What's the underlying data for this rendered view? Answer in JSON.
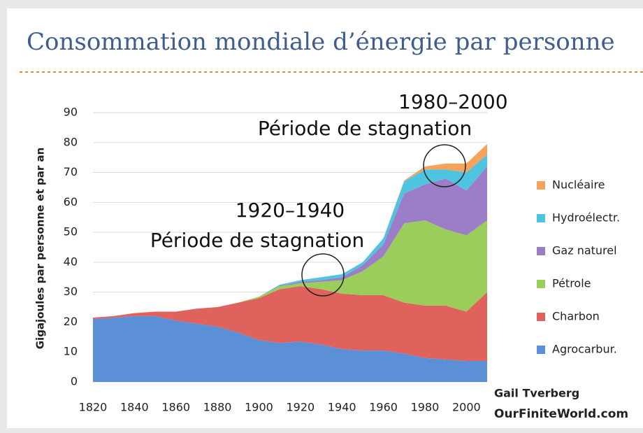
{
  "chart_data": {
    "type": "stacked_area",
    "title": "Consommation mondiale d’énergie par personne",
    "ylabel": "Gigajoules par personne et par an",
    "x": [
      1820,
      1830,
      1840,
      1850,
      1860,
      1870,
      1880,
      1890,
      1900,
      1910,
      1920,
      1930,
      1940,
      1950,
      1960,
      1970,
      1980,
      1990,
      2000,
      2010
    ],
    "xlim": [
      1820,
      2010
    ],
    "xticks": [
      1820,
      1840,
      1860,
      1880,
      1900,
      1920,
      1940,
      1960,
      1980,
      2000
    ],
    "ylim": [
      0,
      90
    ],
    "yticks": [
      0,
      10,
      20,
      30,
      40,
      50,
      60,
      70,
      80,
      90
    ],
    "grid": true,
    "legend": "right",
    "series": [
      {
        "name": "Agrocarbur.",
        "color": "#5b8fd6",
        "values": [
          21,
          21.5,
          22,
          22,
          20.5,
          19.5,
          18.5,
          16.5,
          14,
          13,
          13.5,
          12.5,
          11,
          10.5,
          10.5,
          9.5,
          8,
          7.5,
          7,
          7
        ]
      },
      {
        "name": "Charbon",
        "color": "#e0625c",
        "values": [
          0.5,
          0.5,
          1,
          1.5,
          3,
          5,
          6.5,
          10,
          14,
          18,
          18.5,
          18.5,
          18.5,
          18.5,
          18.5,
          17,
          17.5,
          18,
          16.5,
          23
        ]
      },
      {
        "name": "Pétrole",
        "color": "#9acd5a",
        "values": [
          0,
          0,
          0,
          0,
          0,
          0,
          0,
          0,
          0.5,
          1,
          1,
          2.5,
          4.5,
          8,
          13,
          26.5,
          28.5,
          25.5,
          25.5,
          24
        ]
      },
      {
        "name": "Gaz naturel",
        "color": "#9b7ec7",
        "values": [
          0,
          0,
          0,
          0,
          0,
          0,
          0,
          0,
          0,
          0.2,
          0.5,
          0.5,
          1,
          2,
          4,
          10,
          12,
          17,
          15,
          18
        ]
      },
      {
        "name": "Hydroélectr.",
        "color": "#4fc4e0",
        "values": [
          0,
          0,
          0,
          0,
          0,
          0,
          0,
          0,
          0,
          0.3,
          0.5,
          1,
          1,
          1,
          2,
          4,
          5,
          3,
          6,
          4
        ]
      },
      {
        "name": "Nucléaire",
        "color": "#f5a25b",
        "values": [
          0,
          0,
          0,
          0,
          0,
          0,
          0,
          0,
          0,
          0,
          0,
          0,
          0,
          0,
          0,
          0.3,
          1,
          2,
          3,
          3.5
        ]
      }
    ],
    "annotations": [
      "1980–2000",
      "Période de stagnation",
      "1920–1940",
      "Période de stagnation"
    ],
    "credits": [
      "Gail Tverberg",
      "OurFiniteWorld.com"
    ]
  }
}
